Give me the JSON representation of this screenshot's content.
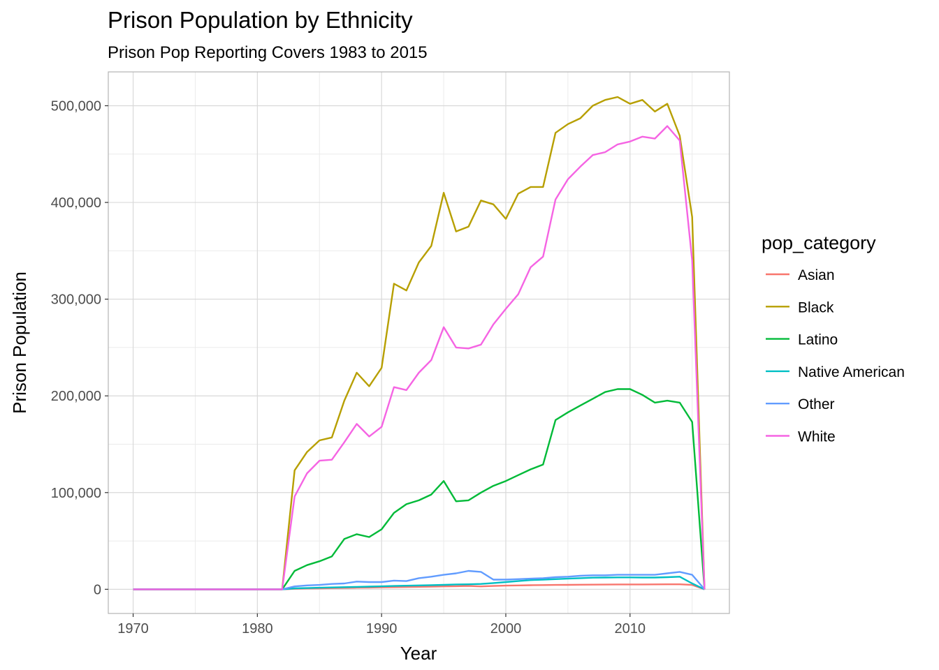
{
  "chart_data": {
    "type": "line",
    "title": "Prison Population by Ethnicity",
    "subtitle": "Prison Pop Reporting Covers 1983 to 2015",
    "xlabel": "Year",
    "ylabel": "Prison Population",
    "xlim": [
      1968,
      2018
    ],
    "ylim": [
      -25000,
      535000
    ],
    "x_ticks": [
      1970,
      1980,
      1990,
      2000,
      2010
    ],
    "x_tick_labels": [
      "1970",
      "1980",
      "1990",
      "2000",
      "2010"
    ],
    "y_ticks": [
      0,
      100000,
      200000,
      300000,
      400000,
      500000
    ],
    "y_tick_labels": [
      "0",
      "100,000",
      "200,000",
      "300,000",
      "400,000",
      "500,000"
    ],
    "grid": true,
    "legend": {
      "title": "pop_category",
      "placement": "right"
    },
    "x": [
      1970,
      1971,
      1972,
      1973,
      1974,
      1975,
      1976,
      1977,
      1978,
      1979,
      1980,
      1981,
      1982,
      1983,
      1984,
      1985,
      1986,
      1987,
      1988,
      1989,
      1990,
      1991,
      1992,
      1993,
      1994,
      1995,
      1996,
      1997,
      1998,
      1999,
      2000,
      2001,
      2002,
      2003,
      2004,
      2005,
      2006,
      2007,
      2008,
      2009,
      2010,
      2011,
      2012,
      2013,
      2014,
      2015,
      2016
    ],
    "series": [
      {
        "name": "Asian",
        "color": "#F8766D",
        "values": [
          0,
          0,
          0,
          0,
          0,
          0,
          0,
          0,
          0,
          0,
          0,
          0,
          0,
          500,
          800,
          1000,
          1200,
          1400,
          1600,
          1800,
          2000,
          2200,
          2400,
          2600,
          2800,
          3000,
          3200,
          3400,
          3000,
          3400,
          3800,
          4000,
          4200,
          4400,
          4500,
          4600,
          4700,
          4800,
          4900,
          5000,
          5000,
          5000,
          5100,
          5200,
          5200,
          4500,
          0
        ]
      },
      {
        "name": "Black",
        "color": "#B79F00",
        "values": [
          0,
          0,
          0,
          0,
          0,
          0,
          0,
          0,
          0,
          0,
          0,
          0,
          0,
          123000,
          142000,
          154000,
          157000,
          195000,
          224000,
          210000,
          229000,
          316000,
          309000,
          338000,
          355000,
          410000,
          370000,
          375000,
          402000,
          398000,
          383000,
          409000,
          416000,
          416000,
          472000,
          481000,
          487000,
          500000,
          506000,
          509000,
          502000,
          506000,
          494000,
          502000,
          469000,
          385000,
          0
        ]
      },
      {
        "name": "Latino",
        "color": "#00BA38",
        "values": [
          0,
          0,
          0,
          0,
          0,
          0,
          0,
          0,
          0,
          0,
          0,
          0,
          0,
          19000,
          25000,
          29000,
          34000,
          52000,
          57000,
          54000,
          62000,
          79000,
          88000,
          92000,
          98000,
          112000,
          91000,
          92000,
          100000,
          107000,
          112000,
          118000,
          124000,
          129000,
          175000,
          183000,
          190000,
          197000,
          204000,
          207000,
          207000,
          201000,
          193000,
          195000,
          193000,
          173000,
          0
        ]
      },
      {
        "name": "Native American",
        "color": "#00BFC4",
        "values": [
          0,
          0,
          0,
          0,
          0,
          0,
          0,
          0,
          0,
          0,
          0,
          0,
          0,
          1000,
          1300,
          1600,
          1900,
          2200,
          2500,
          2800,
          3100,
          3400,
          3700,
          4000,
          4300,
          4600,
          5000,
          5200,
          5500,
          6500,
          7500,
          8500,
          9500,
          10000,
          10500,
          11000,
          11500,
          12000,
          12200,
          12300,
          12300,
          12200,
          12200,
          12500,
          13000,
          6000,
          0
        ]
      },
      {
        "name": "Other",
        "color": "#619CFF",
        "values": [
          0,
          0,
          0,
          0,
          0,
          0,
          0,
          0,
          0,
          0,
          0,
          0,
          0,
          3000,
          4000,
          4500,
          5500,
          6000,
          8000,
          7500,
          7500,
          9000,
          8500,
          11500,
          13000,
          15000,
          16500,
          19000,
          18000,
          10000,
          10000,
          10500,
          11000,
          11500,
          12500,
          13000,
          14000,
          14500,
          14500,
          15000,
          15000,
          15000,
          15000,
          16500,
          18000,
          15000,
          0
        ]
      },
      {
        "name": "White",
        "color": "#F564E3",
        "values": [
          0,
          0,
          0,
          0,
          0,
          0,
          0,
          0,
          0,
          0,
          0,
          0,
          0,
          96000,
          120000,
          133000,
          134000,
          152000,
          171000,
          158000,
          168000,
          209000,
          206000,
          224000,
          237000,
          271000,
          250000,
          249000,
          253000,
          274000,
          290000,
          305000,
          333000,
          344000,
          403000,
          424000,
          437000,
          449000,
          452000,
          460000,
          463000,
          468000,
          466000,
          479000,
          464000,
          340000,
          0
        ]
      }
    ]
  }
}
